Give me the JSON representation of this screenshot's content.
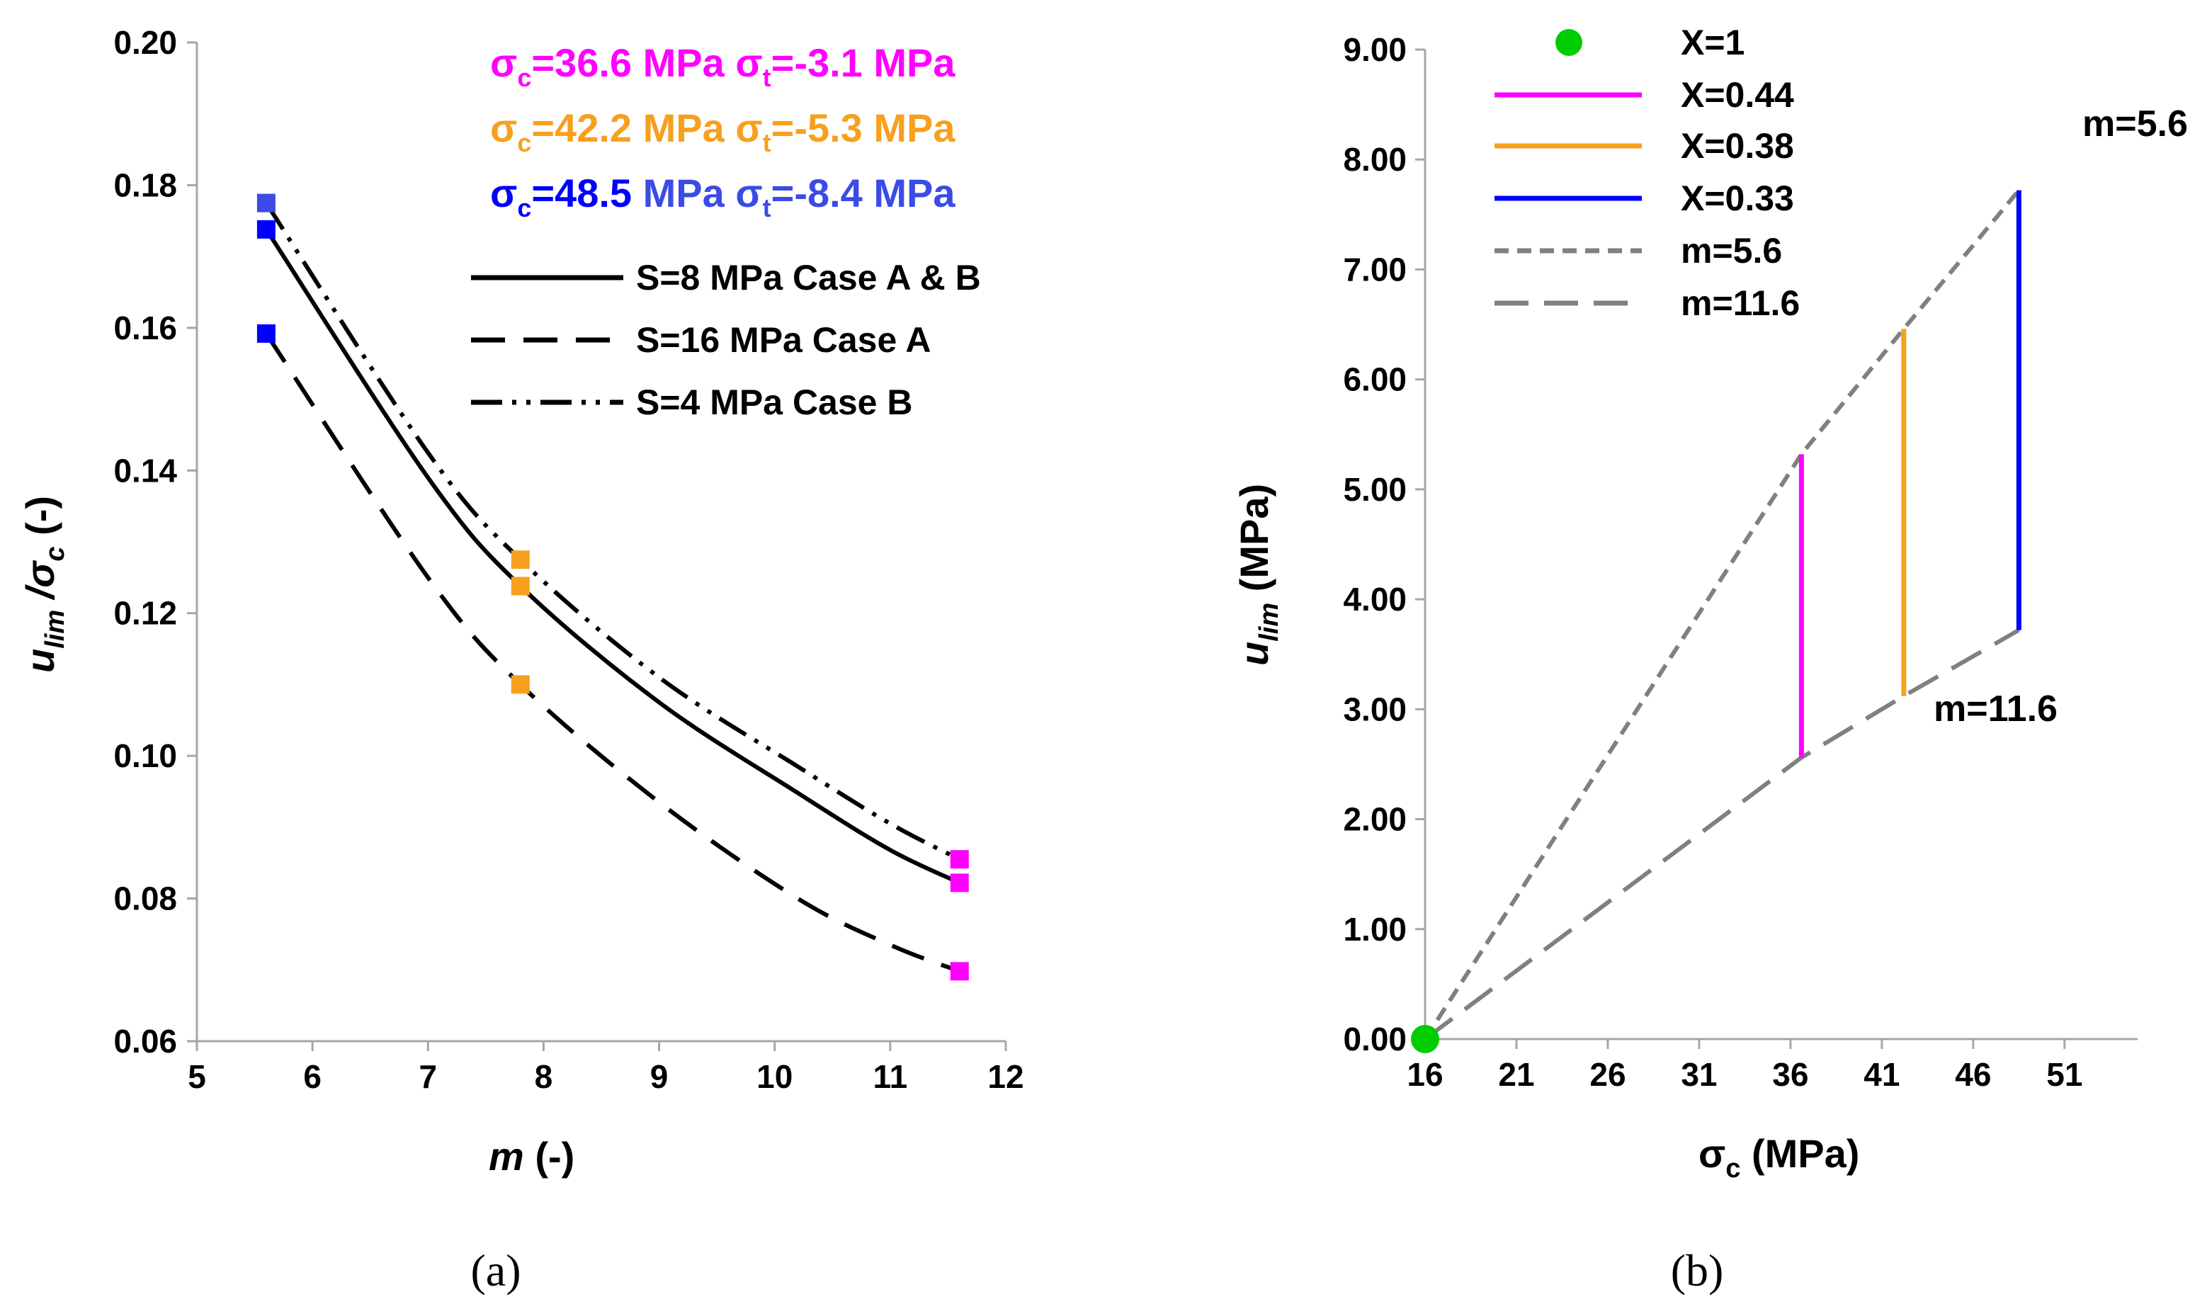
{
  "colors": {
    "magenta": "#FF00FF",
    "orange": "#F7A01E",
    "blue": "#0000FF",
    "lightblue": "#3A4BE6",
    "green": "#00CC00",
    "gray": "#808080",
    "axis": "#A6A6A6",
    "black": "#000000"
  },
  "chart_data": [
    {
      "type": "line",
      "caption": "(a)",
      "xlabel_main": "m",
      "xlabel_unit": " (-)",
      "ylabel_main": "u",
      "ylabel_sub": "lim",
      "ylabel_mid": " /σ",
      "ylabel_sub2": "c",
      "ylabel_unit": " (-)",
      "xlim": [
        5,
        12
      ],
      "ylim": [
        0.06,
        0.2
      ],
      "xticks": [
        "5",
        "6",
        "7",
        "8",
        "9",
        "10",
        "11",
        "12"
      ],
      "yticks": [
        "0.06",
        "0.08",
        "0.10",
        "0.12",
        "0.14",
        "0.16",
        "0.18",
        "0.20"
      ],
      "stress_legend": [
        {
          "sc_label": "σ",
          "sc_sub": "c",
          "sc_val": "=36.6 MPa ",
          "st_label": "σ",
          "st_sub": "t",
          "st_val": "=-3.1 MPa",
          "color": "#FF00FF"
        },
        {
          "sc_label": "σ",
          "sc_sub": "c",
          "sc_val": "=42.2 MPa ",
          "st_label": "σ",
          "st_sub": "t",
          "st_val": "=-5.3 MPa",
          "color": "#F7A01E"
        },
        {
          "sc_label": "σ",
          "sc_sub": "c",
          "sc_val": "=48.5",
          "rest_val": " MPa ",
          "st_label": "σ",
          "st_sub": "t",
          "st_val": "=-8.4 MPa",
          "color": "#0000FF",
          "color2": "#3A4BE6"
        }
      ],
      "series": [
        {
          "name": "S=8 MPa Case A & B",
          "dash": "solid",
          "x": [
            5.6,
            7.0,
            7.8,
            9.0,
            10.2,
            11.0,
            11.6
          ],
          "y": [
            0.1738,
            0.139,
            0.1238,
            0.1075,
            0.0948,
            0.0868,
            0.0822
          ]
        },
        {
          "name": "S=16 MPa Case A",
          "dash": "long",
          "x": [
            5.6,
            7.0,
            7.8,
            9.0,
            10.2,
            11.0,
            11.6
          ],
          "y": [
            0.1592,
            0.125,
            0.11,
            0.0935,
            0.08,
            0.0735,
            0.0698
          ]
        },
        {
          "name": "S=4 MPa Case B",
          "dash": "dashdotdot",
          "x": [
            5.6,
            7.0,
            7.8,
            9.0,
            10.2,
            11.0,
            11.6
          ],
          "y": [
            0.1775,
            0.1425,
            0.1275,
            0.111,
            0.0985,
            0.0905,
            0.0855
          ]
        }
      ],
      "markers": [
        {
          "x": 5.6,
          "y": 0.1775,
          "color": "#3A4BE6"
        },
        {
          "x": 5.6,
          "y": 0.1738,
          "color": "#0000FF"
        },
        {
          "x": 5.6,
          "y": 0.1592,
          "color": "#0000FF"
        },
        {
          "x": 7.8,
          "y": 0.1275,
          "color": "#F7A01E"
        },
        {
          "x": 7.8,
          "y": 0.1238,
          "color": "#F7A01E"
        },
        {
          "x": 7.8,
          "y": 0.11,
          "color": "#F7A01E"
        },
        {
          "x": 11.6,
          "y": 0.0855,
          "color": "#FF00FF"
        },
        {
          "x": 11.6,
          "y": 0.0822,
          "color": "#FF00FF"
        },
        {
          "x": 11.6,
          "y": 0.0698,
          "color": "#FF00FF"
        }
      ]
    },
    {
      "type": "line",
      "caption": "(b)",
      "xlabel_main": "σ",
      "xlabel_sub": "c",
      "xlabel_unit": " (MPa)",
      "ylabel_main": "u",
      "ylabel_sub": "lim",
      "ylabel_unit": "  (MPa)",
      "xlim": [
        16,
        55
      ],
      "ylim": [
        0,
        9
      ],
      "xticks": [
        "16",
        "21",
        "26",
        "31",
        "36",
        "41",
        "46",
        "51"
      ],
      "yticks": [
        "0.00",
        "1.00",
        "2.00",
        "3.00",
        "4.00",
        "5.00",
        "6.00",
        "7.00",
        "8.00",
        "9.00"
      ],
      "legend": [
        {
          "name": "X=1",
          "kind": "dot",
          "color": "#00CC00"
        },
        {
          "name": "X=0.44",
          "kind": "line",
          "color": "#FF00FF"
        },
        {
          "name": "X=0.38",
          "kind": "line",
          "color": "#F7A01E"
        },
        {
          "name": "X=0.33",
          "kind": "line",
          "color": "#0000FF"
        },
        {
          "name": "m=5.6",
          "kind": "shortdash",
          "color": "#808080"
        },
        {
          "name": "m=11.6",
          "kind": "longdash",
          "color": "#808080"
        }
      ],
      "series": [
        {
          "name": "m=5.6",
          "dash": "short",
          "x": [
            16,
            36.6,
            42.2,
            48.5
          ],
          "y": [
            0,
            5.32,
            6.46,
            7.72
          ]
        },
        {
          "name": "m=11.6",
          "dash": "long",
          "x": [
            16,
            36.6,
            42.2,
            48.5
          ],
          "y": [
            0,
            2.56,
            3.12,
            3.72
          ]
        }
      ],
      "verticals": [
        {
          "name": "X=0.44",
          "x": 36.6,
          "y0": 2.56,
          "y1": 5.32,
          "color": "#FF00FF"
        },
        {
          "name": "X=0.38",
          "x": 42.2,
          "y0": 3.12,
          "y1": 6.46,
          "color": "#F7A01E"
        },
        {
          "name": "X=0.33",
          "x": 48.5,
          "y0": 3.72,
          "y1": 7.72,
          "color": "#0000FF"
        }
      ],
      "point": {
        "name": "X=1",
        "x": 16,
        "y": 0,
        "color": "#00CC00"
      },
      "annotations": [
        {
          "text": "m=5.6",
          "anchor": "top-right"
        },
        {
          "text": "m=11.6",
          "anchor": "lower-right"
        }
      ]
    }
  ]
}
